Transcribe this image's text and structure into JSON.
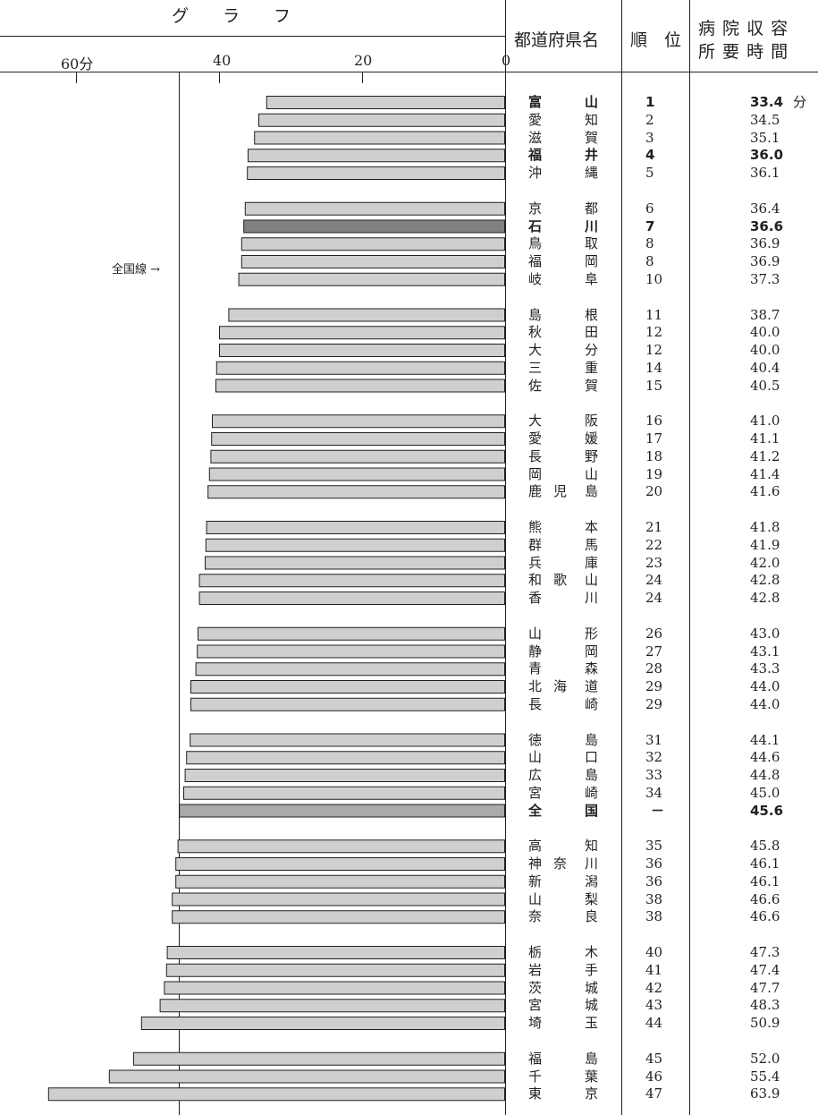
{
  "header": {
    "graph_label": "グ　　ラ　　フ",
    "pref_label": "都道府県名",
    "rank_label": "順　位",
    "time_label_line1": "病 院 収 容",
    "time_label_line2": "所 要 時 間"
  },
  "axis_ticks": [
    "60分",
    "40",
    "20",
    "0"
  ],
  "national_line_label": "全国線 →",
  "time_unit": "分",
  "colors": {
    "bar": "#cfcfcf",
    "bar_highlight": "#808080",
    "bar_national": "#a9a9a9",
    "border": "#231f20"
  },
  "chart_data": {
    "type": "bar",
    "orientation": "horizontal",
    "xlim": [
      0,
      60
    ],
    "x_ticks": [
      60,
      40,
      20,
      0
    ],
    "reference_line": {
      "label": "全国線",
      "value": 45.6
    },
    "categories": [
      "富山",
      "愛知",
      "滋賀",
      "福井",
      "沖縄",
      "京都",
      "石川",
      "鳥取",
      "福岡",
      "岐阜",
      "島根",
      "秋田",
      "大分",
      "三重",
      "佐賀",
      "大阪",
      "愛媛",
      "長野",
      "岡山",
      "鹿児島",
      "熊本",
      "群馬",
      "兵庫",
      "和歌山",
      "香川",
      "山形",
      "静岡",
      "青森",
      "北海道",
      "長崎",
      "徳島",
      "山口",
      "広島",
      "宮崎",
      "全国",
      "高知",
      "神奈川",
      "新潟",
      "山梨",
      "奈良",
      "栃木",
      "岩手",
      "茨城",
      "宮城",
      "埼玉",
      "福島",
      "千葉",
      "東京"
    ],
    "values": [
      33.4,
      34.5,
      35.1,
      36.0,
      36.1,
      36.4,
      36.6,
      36.9,
      36.9,
      37.3,
      38.7,
      40.0,
      40.0,
      40.4,
      40.5,
      41.0,
      41.1,
      41.2,
      41.4,
      41.6,
      41.8,
      41.9,
      42.0,
      42.8,
      42.8,
      43.0,
      43.1,
      43.3,
      44.0,
      44.0,
      44.1,
      44.6,
      44.8,
      45.0,
      45.6,
      45.8,
      46.1,
      46.1,
      46.6,
      46.6,
      47.3,
      47.4,
      47.7,
      48.3,
      50.9,
      52.0,
      55.4,
      63.9
    ],
    "ranks": [
      "1",
      "2",
      "3",
      "4",
      "5",
      "6",
      "7",
      "8",
      "8",
      "10",
      "11",
      "12",
      "12",
      "14",
      "15",
      "16",
      "17",
      "18",
      "19",
      "20",
      "21",
      "22",
      "23",
      "24",
      "24",
      "26",
      "27",
      "28",
      "29",
      "29",
      "31",
      "32",
      "33",
      "34",
      "－",
      "35",
      "36",
      "36",
      "38",
      "38",
      "40",
      "41",
      "42",
      "43",
      "44",
      "45",
      "46",
      "47"
    ],
    "value_labels": [
      "33.4",
      "34.5",
      "35.1",
      "36.0",
      "36.1",
      "36.4",
      "36.6",
      "36.9",
      "36.9",
      "37.3",
      "38.7",
      "40.0",
      "40.0",
      "40.4",
      "40.5",
      "41.0",
      "41.1",
      "41.2",
      "41.4",
      "41.6",
      "41.8",
      "41.9",
      "42.0",
      "42.8",
      "42.8",
      "43.0",
      "43.1",
      "43.3",
      "44.0",
      "44.0",
      "44.1",
      "44.6",
      "44.8",
      "45.0",
      "45.6",
      "45.8",
      "46.1",
      "46.1",
      "46.6",
      "46.6",
      "47.3",
      "47.4",
      "47.7",
      "48.3",
      "50.9",
      "52.0",
      "55.4",
      "63.9"
    ],
    "name_display": [
      [
        "富",
        "",
        "山"
      ],
      [
        "愛",
        "",
        "知"
      ],
      [
        "滋",
        "",
        "賀"
      ],
      [
        "福",
        "",
        "井"
      ],
      [
        "沖",
        "",
        "縄"
      ],
      [
        "京",
        "",
        "都"
      ],
      [
        "石",
        "",
        "川"
      ],
      [
        "鳥",
        "",
        "取"
      ],
      [
        "福",
        "",
        "岡"
      ],
      [
        "岐",
        "",
        "阜"
      ],
      [
        "島",
        "",
        "根"
      ],
      [
        "秋",
        "",
        "田"
      ],
      [
        "大",
        "",
        "分"
      ],
      [
        "三",
        "",
        "重"
      ],
      [
        "佐",
        "",
        "賀"
      ],
      [
        "大",
        "",
        "阪"
      ],
      [
        "愛",
        "",
        "媛"
      ],
      [
        "長",
        "",
        "野"
      ],
      [
        "岡",
        "",
        "山"
      ],
      [
        "鹿",
        "児",
        "島"
      ],
      [
        "熊",
        "",
        "本"
      ],
      [
        "群",
        "",
        "馬"
      ],
      [
        "兵",
        "",
        "庫"
      ],
      [
        "和",
        "歌",
        "山"
      ],
      [
        "香",
        "",
        "川"
      ],
      [
        "山",
        "",
        "形"
      ],
      [
        "静",
        "",
        "岡"
      ],
      [
        "青",
        "",
        "森"
      ],
      [
        "北",
        "海",
        "道"
      ],
      [
        "長",
        "",
        "崎"
      ],
      [
        "徳",
        "",
        "島"
      ],
      [
        "山",
        "",
        "口"
      ],
      [
        "広",
        "",
        "島"
      ],
      [
        "宮",
        "",
        "崎"
      ],
      [
        "全",
        "",
        "国"
      ],
      [
        "高",
        "",
        "知"
      ],
      [
        "神",
        "奈",
        "川"
      ],
      [
        "新",
        "",
        "潟"
      ],
      [
        "山",
        "",
        "梨"
      ],
      [
        "奈",
        "",
        "良"
      ],
      [
        "栃",
        "",
        "木"
      ],
      [
        "岩",
        "",
        "手"
      ],
      [
        "茨",
        "",
        "城"
      ],
      [
        "宮",
        "",
        "城"
      ],
      [
        "埼",
        "",
        "玉"
      ],
      [
        "福",
        "",
        "島"
      ],
      [
        "千",
        "",
        "葉"
      ],
      [
        "東",
        "",
        "京"
      ]
    ],
    "bold_rows": [
      "富山",
      "石川",
      "福井",
      "全国"
    ],
    "highlight_rows": [
      "石川"
    ],
    "national_row": "全国"
  }
}
